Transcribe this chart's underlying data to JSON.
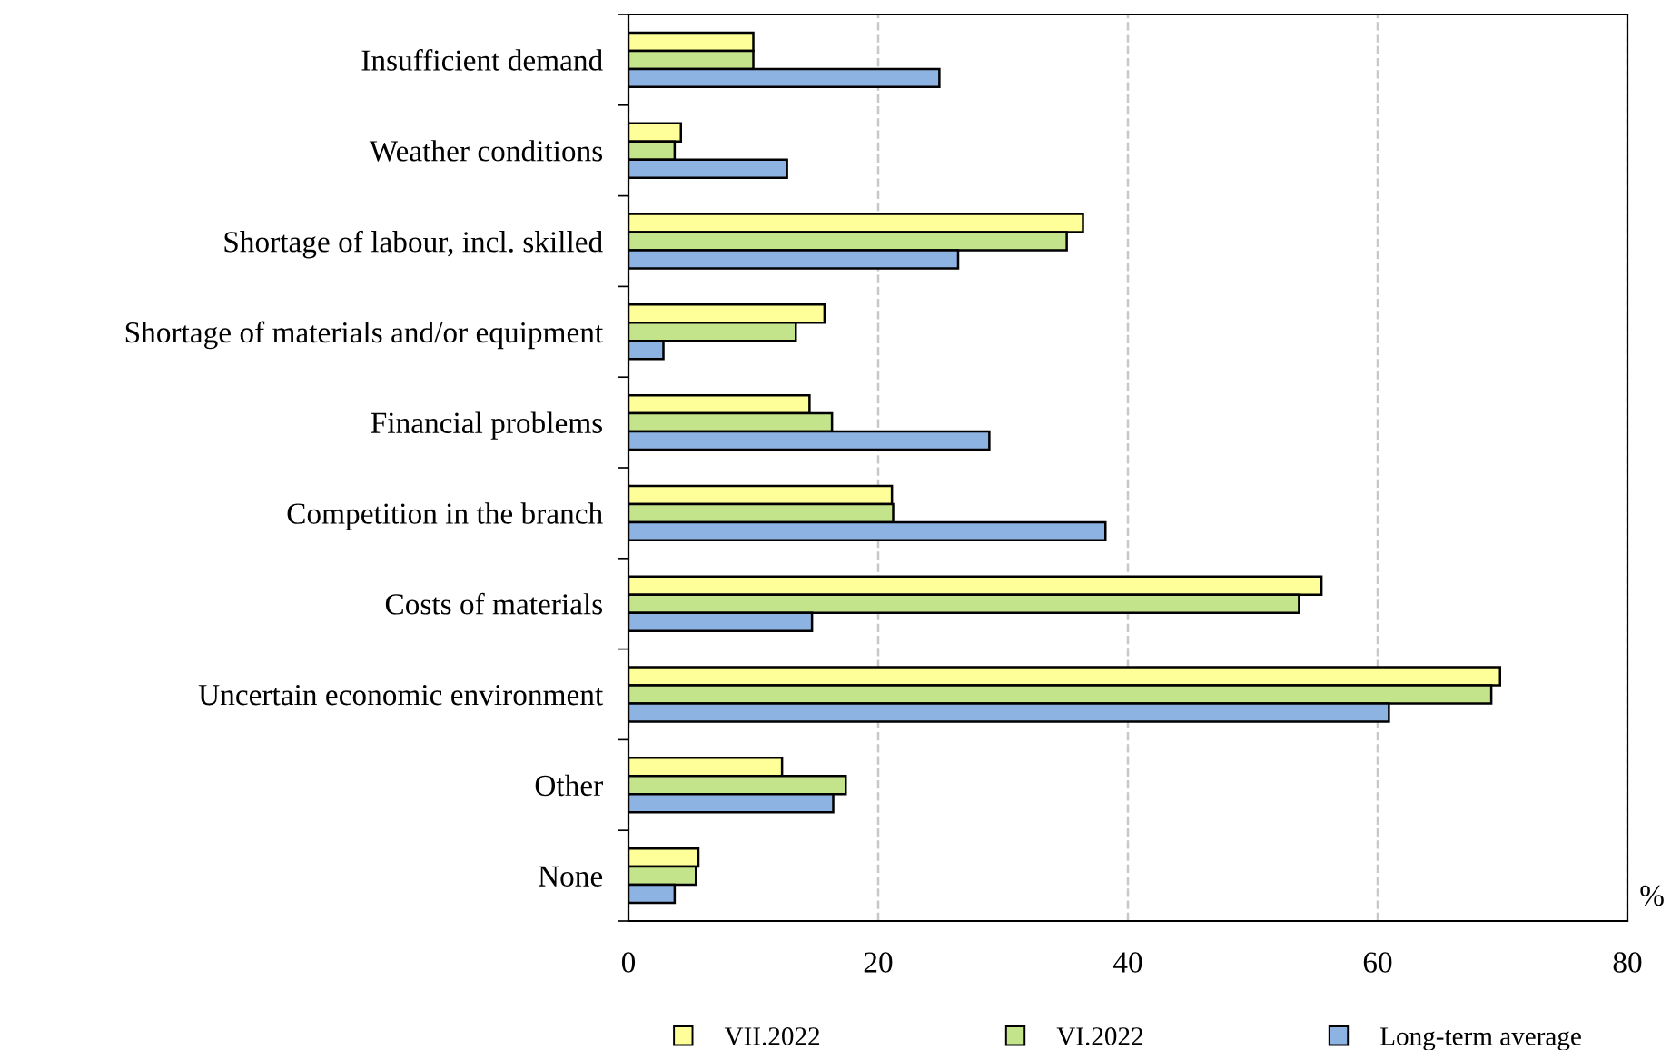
{
  "chart_data": {
    "type": "bar",
    "orientation": "horizontal",
    "categories": [
      "Insufficient demand",
      "Weather conditions",
      "Shortage of labour, incl. skilled",
      "Shortage of materials and/or equipment",
      "Financial problems",
      "Competition in the branch",
      "Costs of materials",
      "Uncertain economic environment",
      "Other",
      "None"
    ],
    "series": [
      {
        "name": "VII.2022",
        "color": "#ffff99",
        "values": [
          10.0,
          4.2,
          36.4,
          15.7,
          14.5,
          21.1,
          55.5,
          69.8,
          12.3,
          5.6
        ]
      },
      {
        "name": "VI.2022",
        "color": "#c4e48c",
        "values": [
          10.0,
          3.7,
          35.1,
          13.4,
          16.3,
          21.2,
          53.7,
          69.1,
          17.4,
          5.4
        ]
      },
      {
        "name": "Long-term average",
        "color": "#8db3e2",
        "values": [
          24.9,
          12.7,
          26.4,
          2.8,
          28.9,
          38.2,
          14.7,
          60.9,
          16.4,
          3.7
        ]
      }
    ],
    "xlim": [
      0,
      80
    ],
    "xticks": [
      0,
      20,
      40,
      60,
      80
    ],
    "grid": "x",
    "legend": "bottom",
    "annotations": [
      "%"
    ]
  }
}
